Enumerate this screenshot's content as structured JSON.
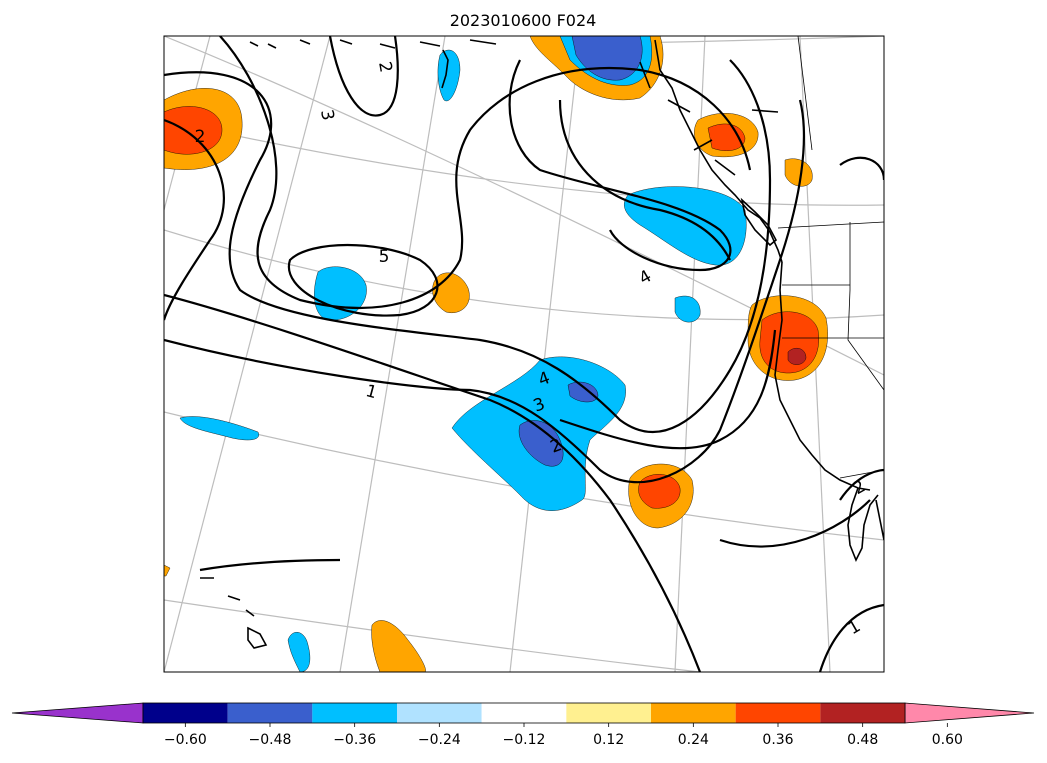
{
  "chart_data": {
    "type": "contour-map",
    "title": "2023010600 F024",
    "colorbar": {
      "ticks": [
        "−0.60",
        "−0.48",
        "−0.36",
        "−0.24",
        "−0.12",
        "0.12",
        "0.24",
        "0.36",
        "0.48",
        "0.60"
      ],
      "levels": [
        -0.6,
        -0.48,
        -0.36,
        -0.24,
        -0.12,
        0.12,
        0.24,
        0.36,
        0.48,
        0.6
      ],
      "colors": [
        "#9932cc",
        "#00008b",
        "#3a5fcd",
        "#00bfff",
        "#b0e2ff",
        "#ffffff",
        "#fff090",
        "#ffa500",
        "#ff4500",
        "#b22222",
        "#ff88aa"
      ],
      "extend": "both",
      "orientation": "horizontal"
    },
    "contour_labels": [
      "2",
      "3",
      "2",
      "5",
      "4",
      "1",
      "4",
      "3",
      "2",
      "1",
      "2"
    ],
    "contour_line_color": "#000000",
    "grid": true,
    "coastlines": true
  }
}
